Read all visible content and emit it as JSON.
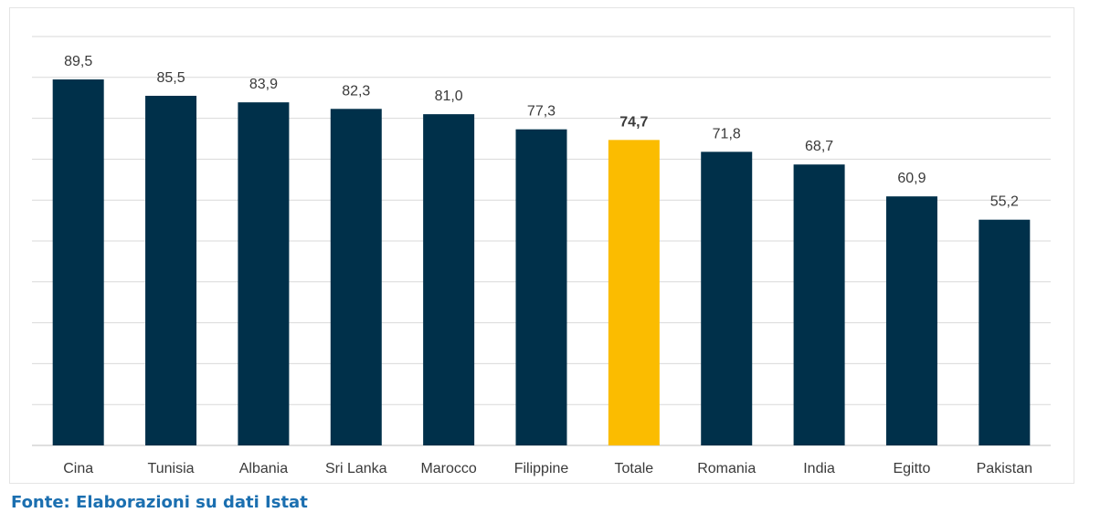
{
  "source": "Fonte: Elaborazioni su dati Istat",
  "chart_data": {
    "type": "bar",
    "categories": [
      "Cina",
      "Tunisia",
      "Albania",
      "Sri Lanka",
      "Marocco",
      "Filippine",
      "Totale",
      "Romania",
      "India",
      "Egitto",
      "Pakistan"
    ],
    "values": [
      89.5,
      85.5,
      83.9,
      82.3,
      81.0,
      77.3,
      74.7,
      71.8,
      68.7,
      60.9,
      55.2
    ],
    "value_labels": [
      "89,5",
      "85,5",
      "83,9",
      "82,3",
      "81,0",
      "77,3",
      "74,7",
      "71,8",
      "68,7",
      "60,9",
      "55,2"
    ],
    "highlight_index": 6,
    "ylim": [
      0,
      100
    ],
    "grid": true,
    "gridlines": 10,
    "colors": {
      "bar": "#00304a",
      "highlight": "#fbbc00",
      "grid": "#d9d9d9",
      "axis": "#bfbfbf"
    }
  }
}
